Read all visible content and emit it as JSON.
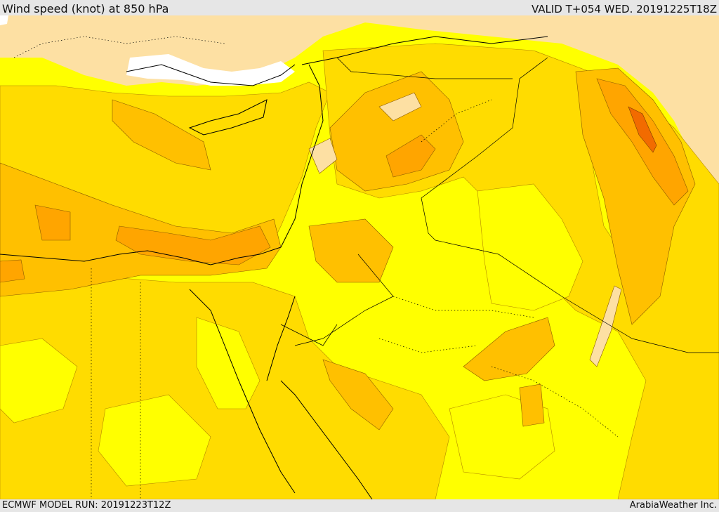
{
  "header": {
    "title": "Wind speed (knot) at 850 hPa",
    "valid_time": "VALID T+054 WED. 20191225T18Z"
  },
  "footer": {
    "model_run": "ECMWF MODEL RUN: 20191223T12Z",
    "credit": "ArabiaWeather Inc."
  },
  "map": {
    "field": "Wind speed (knot) at 850 hPa",
    "colors": {
      "land_light": "#fde0a3",
      "calm": "#ffffff",
      "level_1": "#ffff00",
      "level_2": "#ffdc00",
      "level_3": "#ffc000",
      "level_4": "#ffa500",
      "level_5": "#ff8c00",
      "level_6": "#f26b00",
      "coastline": "#000000"
    }
  }
}
